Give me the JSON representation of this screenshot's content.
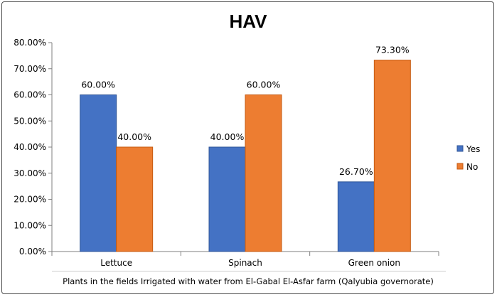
{
  "chart_data": {
    "type": "bar",
    "title": "HAV",
    "xlabel": "Plants in the fields Irrigated with water from El-Gabal El-Asfar farm (Qalyubia governorate)",
    "ylabel": "",
    "categories": [
      "Lettuce",
      "Spinach",
      "Green onion"
    ],
    "series": [
      {
        "name": "Yes",
        "values": [
          60.0,
          40.0,
          26.7
        ],
        "labels": [
          "60.00%",
          "40.00%",
          "26.70%"
        ],
        "color": "#4472C4"
      },
      {
        "name": "No",
        "values": [
          40.0,
          60.0,
          73.3
        ],
        "labels": [
          "40.00%",
          "60.00%",
          "73.30%"
        ],
        "color": "#ED7D31"
      }
    ],
    "ylim": [
      0,
      80
    ],
    "yticks": [
      0,
      10,
      20,
      30,
      40,
      50,
      60,
      70,
      80
    ],
    "ytick_labels": [
      "0.00%",
      "10.00%",
      "20.00%",
      "30.00%",
      "40.00%",
      "50.00%",
      "60.00%",
      "70.00%",
      "80.00%"
    ],
    "grid": false,
    "legend_position": "right"
  }
}
